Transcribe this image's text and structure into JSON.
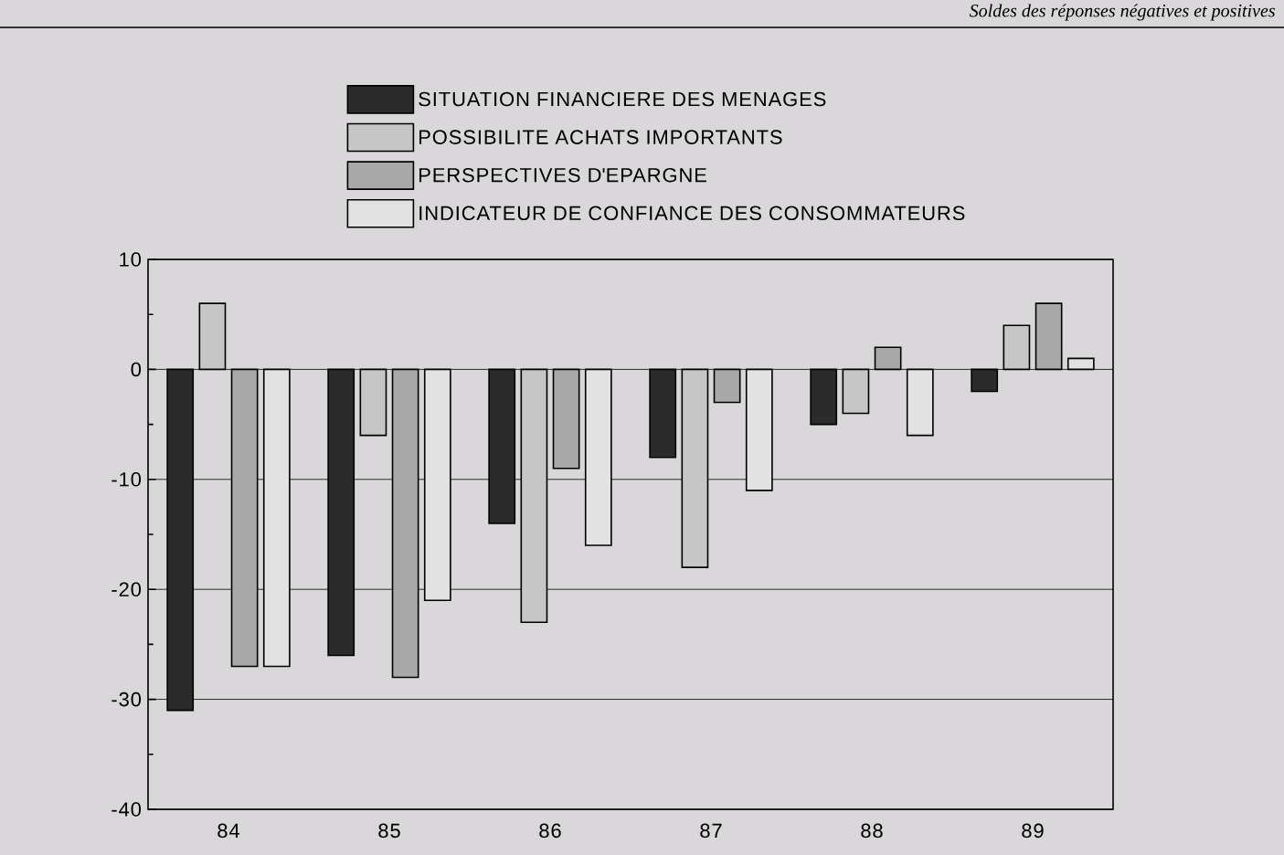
{
  "chart_data": {
    "type": "bar",
    "subtitle": "Soldes des réponses négatives et positives",
    "categories": [
      "84",
      "85",
      "86",
      "87",
      "88",
      "89"
    ],
    "series": [
      {
        "name": "SITUATION FINANCIERE DES MENAGES",
        "color": "#2b2b2b",
        "values": [
          -31,
          -26,
          -14,
          -8,
          -5,
          -2
        ]
      },
      {
        "name": "POSSIBILITE ACHATS IMPORTANTS",
        "color": "#c6c6c6",
        "values": [
          6,
          -6,
          -23,
          -18,
          -4,
          4
        ]
      },
      {
        "name": "PERSPECTIVES D'EPARGNE",
        "color": "#a9a9a9",
        "values": [
          -27,
          -28,
          -9,
          -3,
          2,
          6
        ]
      },
      {
        "name": "INDICATEUR DE CONFIANCE DES CONSOMMATEURS",
        "color": "#e2e2e2",
        "values": [
          -27,
          -21,
          -16,
          -11,
          -6,
          1
        ]
      }
    ],
    "ylim": [
      -40,
      10
    ],
    "yticks": [
      -40,
      -30,
      -20,
      -10,
      0,
      10
    ],
    "grid": "y",
    "legend": "top"
  }
}
